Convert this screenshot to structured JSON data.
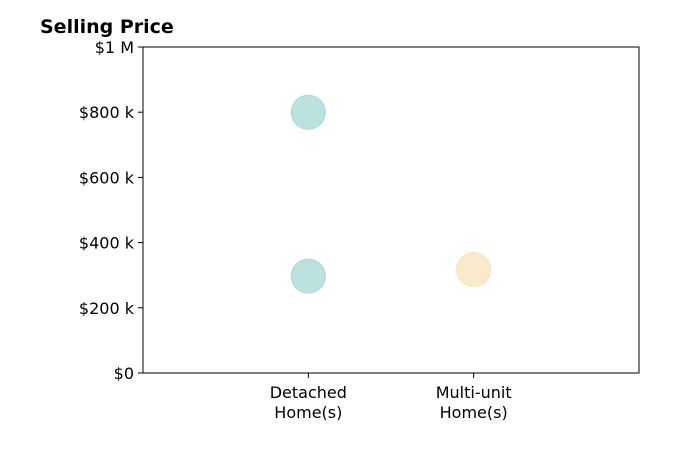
{
  "chart_data": {
    "type": "scatter",
    "title": "Selling Price",
    "categories": [
      "Detached\nHome(s)",
      "Multi-unit\nHome(s)"
    ],
    "y_ticks": [
      "$0",
      "$200 k",
      "$400 k",
      "$600 k",
      "$800 k",
      "$1 M"
    ],
    "y_tick_values": [
      0,
      200000,
      400000,
      600000,
      800000,
      1000000
    ],
    "ylim": [
      0,
      1000000
    ],
    "x_range": [
      -1,
      2
    ],
    "points": [
      {
        "category": "Detached\nHome(s)",
        "x": 0,
        "y": 800000,
        "color": "#a6d8d4"
      },
      {
        "category": "Detached\nHome(s)",
        "x": 0,
        "y": 297000,
        "color": "#a6d8d4"
      },
      {
        "category": "Multi-unit\nHome(s)",
        "x": 1,
        "y": 317000,
        "color": "#f6e3b8"
      }
    ],
    "grid": false
  }
}
